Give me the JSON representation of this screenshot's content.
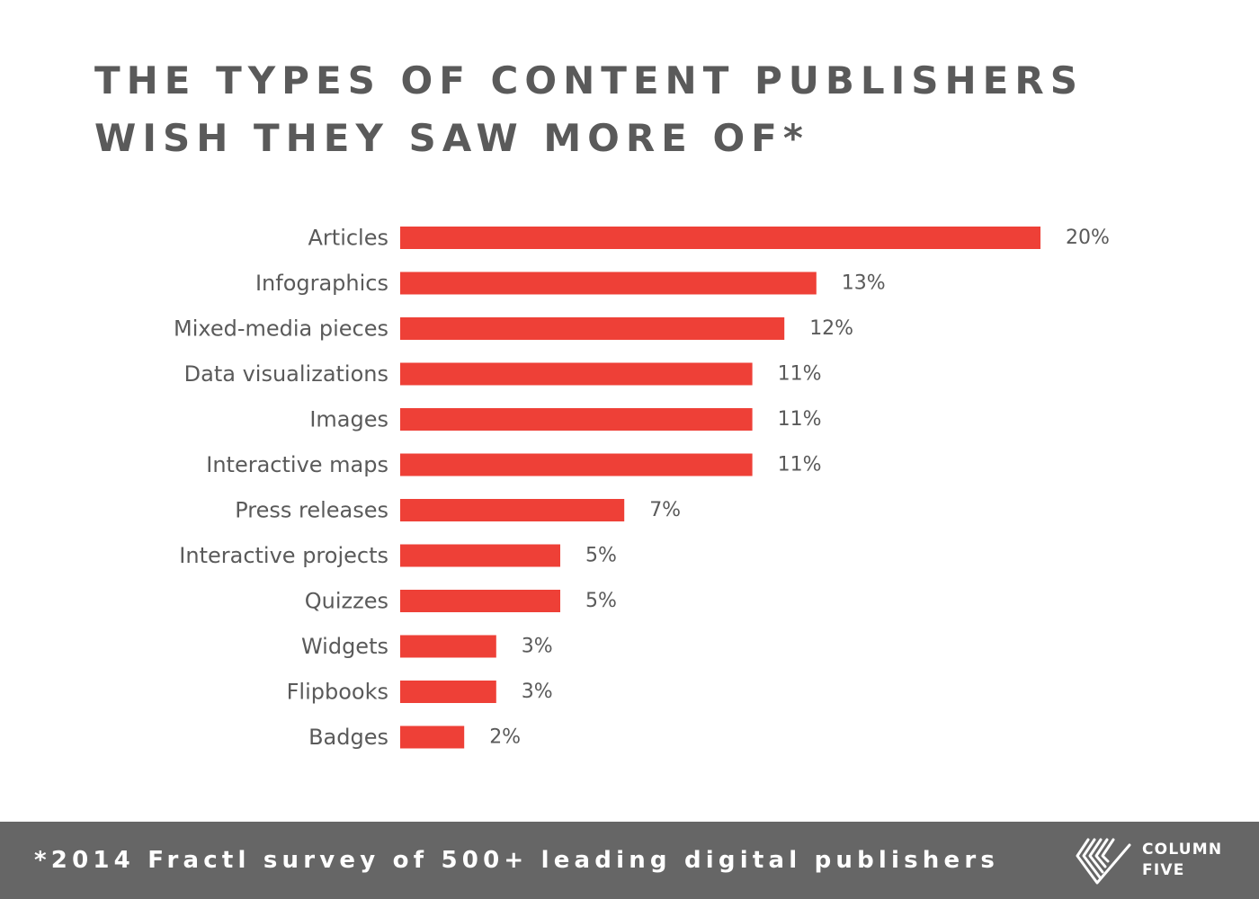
{
  "title": {
    "line1": "THE TYPES OF CONTENT PUBLISHERS",
    "line2": "WISH THEY SAW MORE OF*"
  },
  "chart_data": {
    "type": "bar",
    "orientation": "horizontal",
    "title": "THE TYPES OF CONTENT PUBLISHERS WISH THEY SAW MORE OF*",
    "categories": [
      "Articles",
      "Infographics",
      "Mixed-media pieces",
      "Data visualizations",
      "Images",
      "Interactive maps",
      "Press releases",
      "Interactive projects",
      "Quizzes",
      "Widgets",
      "Flipbooks",
      "Badges"
    ],
    "values": [
      20,
      13,
      12,
      11,
      11,
      11,
      7,
      5,
      5,
      3,
      3,
      2
    ],
    "value_labels": [
      "20%",
      "13%",
      "12%",
      "11%",
      "11%",
      "11%",
      "7%",
      "5%",
      "5%",
      "3%",
      "3%",
      "2%"
    ],
    "unit": "%",
    "xlim": [
      0,
      20
    ],
    "bar_color": "#ee4037",
    "grid": false,
    "legend": "none",
    "axes_visible": false
  },
  "footer": {
    "note": "*2014 Fractl survey of 500+ leading digital publishers",
    "background": "#666666"
  },
  "logo": {
    "icon": "column-five-chevron-icon",
    "line1": "COLUMN",
    "line2": "FIVE"
  },
  "colors": {
    "bar": "#ee4037",
    "title_text": "#5a5a5a",
    "label_text": "#5a5a5a",
    "footer_bg": "#666666",
    "footer_text": "#ffffff"
  }
}
